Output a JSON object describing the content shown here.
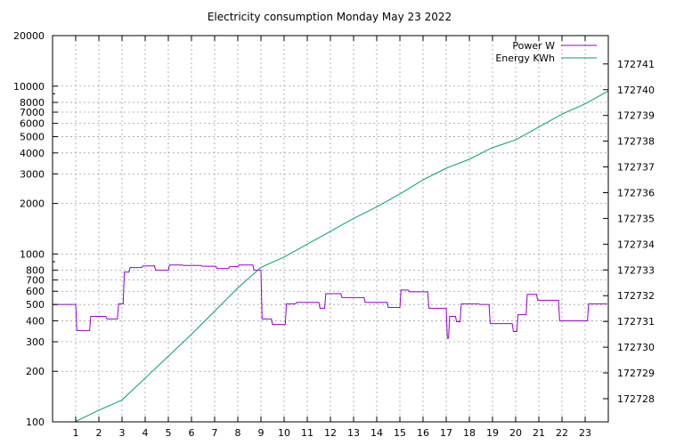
{
  "chart_data": {
    "type": "line",
    "title": "Electricity consumption Monday May 23 2022",
    "xlabel": "",
    "ylabel": "",
    "y2label": "",
    "xlim": [
      0,
      24
    ],
    "x_ticks": [
      1,
      2,
      3,
      4,
      5,
      6,
      7,
      8,
      9,
      10,
      11,
      12,
      13,
      14,
      15,
      16,
      17,
      18,
      19,
      20,
      21,
      22,
      23
    ],
    "ylim": [
      100,
      20000
    ],
    "y_scale": "log",
    "y_ticks": [
      100,
      200,
      300,
      400,
      500,
      600,
      700,
      800,
      1000,
      2000,
      3000,
      4000,
      5000,
      6000,
      7000,
      8000,
      10000,
      20000
    ],
    "y2lim": [
      172727.1,
      172742.1
    ],
    "y2_ticks": [
      172728,
      172729,
      172730,
      172731,
      172732,
      172733,
      172734,
      172735,
      172736,
      172737,
      172738,
      172739,
      172740,
      172741
    ],
    "grid": true,
    "legend_position": "top-right",
    "series": [
      {
        "name": "Power W",
        "axis": "y",
        "step": true,
        "color": "#9400d3",
        "x": [
          0,
          1.0,
          1.05,
          1.6,
          1.65,
          2.3,
          2.35,
          2.8,
          2.85,
          3.05,
          3.1,
          3.3,
          3.35,
          3.85,
          3.9,
          4.4,
          4.45,
          5.0,
          5.05,
          5.6,
          5.65,
          6.4,
          6.45,
          7.05,
          7.1,
          7.6,
          7.65,
          8.0,
          8.05,
          8.65,
          8.7,
          9.0,
          9.05,
          9.45,
          9.5,
          10.05,
          10.1,
          10.5,
          10.55,
          11.5,
          11.55,
          11.75,
          11.8,
          12.45,
          12.5,
          13.45,
          13.5,
          14.45,
          14.5,
          15.0,
          15.05,
          15.35,
          15.4,
          16.2,
          16.25,
          17.0,
          17.05,
          17.1,
          17.15,
          17.4,
          17.45,
          17.6,
          17.65,
          18.4,
          18.45,
          18.85,
          18.9,
          19.85,
          19.9,
          20.05,
          20.1,
          20.45,
          20.5,
          20.9,
          20.95,
          21.85,
          21.9,
          23.1,
          23.15,
          23.95
        ],
        "y": [
          500,
          500,
          350,
          350,
          425,
          425,
          410,
          410,
          505,
          505,
          780,
          780,
          830,
          830,
          850,
          850,
          800,
          800,
          860,
          860,
          855,
          855,
          845,
          845,
          820,
          820,
          840,
          840,
          860,
          860,
          800,
          800,
          410,
          410,
          380,
          380,
          505,
          505,
          515,
          515,
          475,
          475,
          580,
          580,
          550,
          550,
          515,
          515,
          480,
          480,
          610,
          610,
          595,
          595,
          475,
          475,
          315,
          315,
          425,
          425,
          395,
          395,
          505,
          505,
          500,
          500,
          385,
          385,
          345,
          345,
          435,
          435,
          575,
          575,
          530,
          530,
          400,
          400,
          505,
          505
        ]
      },
      {
        "name": "Energy KWh",
        "axis": "y2",
        "step": false,
        "color": "#009e73",
        "x": [
          1,
          2,
          3,
          4,
          5,
          6,
          7,
          8,
          9,
          10,
          11,
          12,
          13,
          14,
          15,
          16,
          17,
          18,
          19,
          20,
          21,
          22,
          23,
          24
        ],
        "y": [
          172727.12,
          172727.55,
          172727.95,
          172728.8,
          172729.65,
          172730.5,
          172731.4,
          172732.3,
          172733.1,
          172733.5,
          172734.0,
          172734.5,
          172735.0,
          172735.45,
          172735.95,
          172736.5,
          172736.95,
          172737.3,
          172737.75,
          172738.05,
          172738.55,
          172739.05,
          172739.45,
          172739.95
        ]
      }
    ]
  }
}
